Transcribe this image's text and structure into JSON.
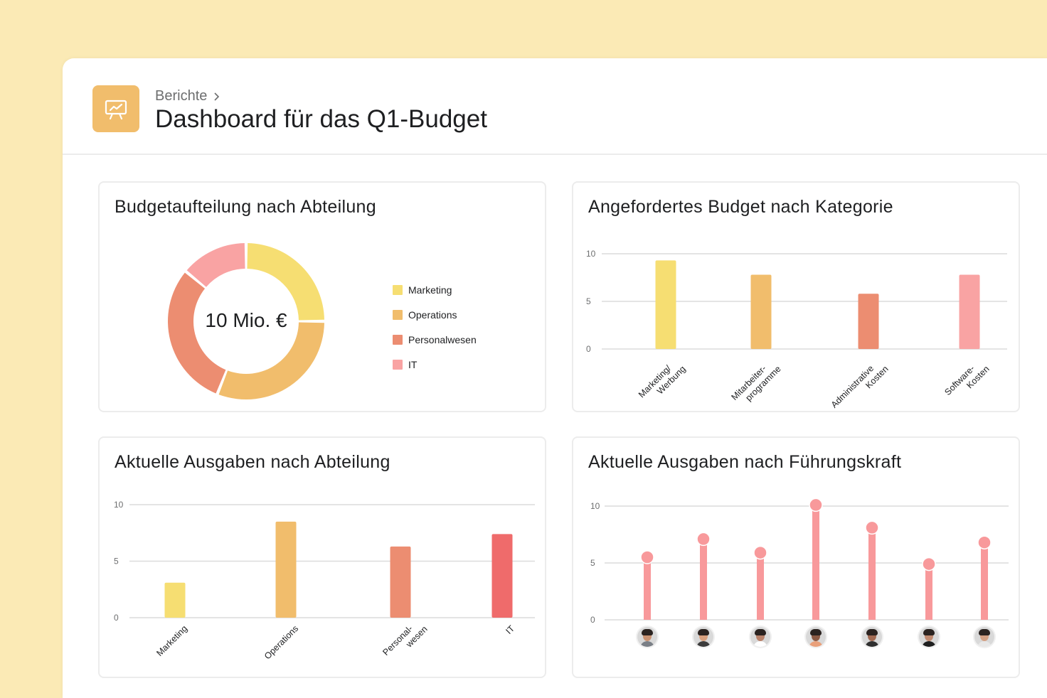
{
  "breadcrumb": {
    "label": "Berichte",
    "chevron_icon": "chevron-right-icon"
  },
  "page": {
    "title": "Dashboard für das Q1-Budget",
    "icon": "presentation-chart-icon",
    "icon_color": "#f1bd6c"
  },
  "colors": {
    "yellow": "#f6de72",
    "orange": "#f1bd6c",
    "salmon": "#ec8d71",
    "pink": "#f9a3a3",
    "red": "#ef6b6b",
    "lollipop": "#f8999b",
    "grid": "#dcdcdc"
  },
  "cards": {
    "budget_split": {
      "title": "Budgetaufteilung nach Abteilung",
      "center_label": "10 Mio. €"
    },
    "requested_budget": {
      "title": "Angefordertes Budget nach Kategorie"
    },
    "current_by_dept": {
      "title": "Aktuelle Ausgaben nach Abteilung"
    },
    "current_by_lead": {
      "title": "Aktuelle Ausgaben nach Führungskraft"
    }
  },
  "chart_data": [
    {
      "type": "pie",
      "title": "Budgetaufteilung nach Abteilung",
      "center_text": "10 Mio. €",
      "legend_position": "right",
      "slices": [
        {
          "name": "Marketing",
          "value": 25,
          "color": "#f6de72"
        },
        {
          "name": "Operations",
          "value": 31,
          "color": "#f1bd6c"
        },
        {
          "name": "Personalwesen",
          "value": 30,
          "color": "#ec8d71"
        },
        {
          "name": "IT",
          "value": 14,
          "color": "#f9a3a3"
        }
      ]
    },
    {
      "type": "bar",
      "title": "Angefordertes Budget nach Kategorie",
      "categories": [
        [
          "Marketing/",
          "Werbung"
        ],
        [
          "Mitarbeiter-",
          "programme"
        ],
        [
          "Administrative",
          "Kosten"
        ],
        [
          "Software-",
          "Kosten"
        ]
      ],
      "values": [
        9.3,
        7.8,
        5.8,
        7.8
      ],
      "colors": [
        "#f6de72",
        "#f1bd6c",
        "#ec8d71",
        "#f9a3a3"
      ],
      "yticks": [
        0,
        5,
        10
      ],
      "ylim": [
        0,
        10
      ],
      "grid": true
    },
    {
      "type": "bar",
      "title": "Aktuelle Ausgaben nach Abteilung",
      "categories": [
        [
          "Marketing"
        ],
        [
          "Operations"
        ],
        [
          "Personal-",
          "wesen"
        ],
        [
          "IT"
        ]
      ],
      "values": [
        3.1,
        8.5,
        6.3,
        7.4
      ],
      "colors": [
        "#f6de72",
        "#f1bd6c",
        "#ec8d71",
        "#ef6b6b"
      ],
      "yticks": [
        0,
        5,
        10
      ],
      "ylim": [
        0,
        10
      ],
      "grid": true
    },
    {
      "type": "bar",
      "style": "lollipop",
      "title": "Aktuelle Ausgaben nach Führungskraft",
      "categories": [
        "person-1",
        "person-2",
        "person-3",
        "person-4",
        "person-5",
        "person-6",
        "person-7"
      ],
      "values": [
        5.5,
        7.1,
        5.9,
        10.1,
        8.1,
        4.9,
        6.8
      ],
      "color": "#f8999b",
      "yticks": [
        0,
        5,
        10
      ],
      "ylim": [
        0,
        10
      ],
      "grid": true
    }
  ],
  "avatars": [
    {
      "skin": "#c99272",
      "shirt": "#7a7f86"
    },
    {
      "skin": "#d9a07e",
      "shirt": "#3c3c3c"
    },
    {
      "skin": "#b9826a",
      "shirt": "#ffffff"
    },
    {
      "skin": "#8c5a44",
      "shirt": "#e9a07a"
    },
    {
      "skin": "#a26a52",
      "shirt": "#2f2f2f"
    },
    {
      "skin": "#c08a70",
      "shirt": "#1f1f1f"
    },
    {
      "skin": "#d3a184",
      "shirt": "#e8e8e8"
    }
  ]
}
